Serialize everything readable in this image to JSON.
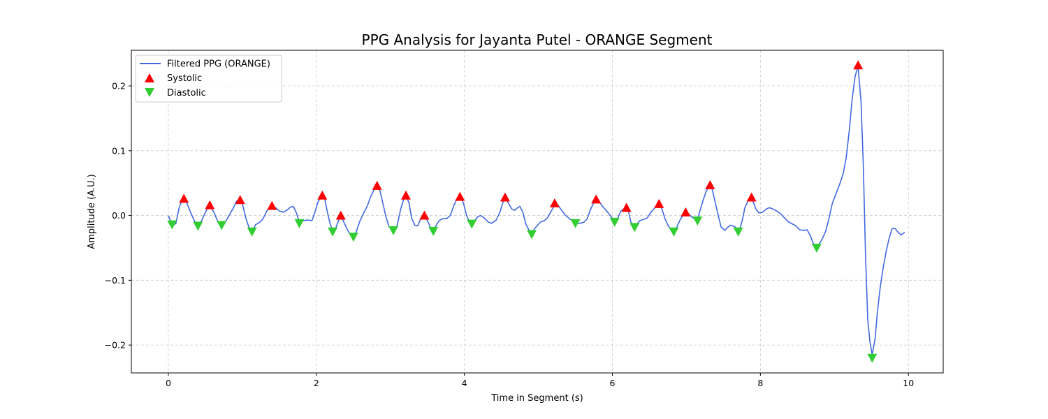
{
  "colors": {
    "signal": "#4169e1",
    "systolic": "#ff0000",
    "diastolic": "#32cd32",
    "grid": "#cccccc",
    "axes": "#000000"
  },
  "chart_data": {
    "type": "line",
    "title": "PPG Analysis for Jayanta Putel - ORANGE Segment",
    "xlabel": "Time in Segment (s)",
    "ylabel": "Amplitude (A.U.)",
    "xlim": [
      -0.5,
      10.47
    ],
    "ylim": [
      -0.243,
      0.255
    ],
    "x_ticks": [
      0,
      2,
      4,
      6,
      8,
      10
    ],
    "x_tick_labels": [
      "0",
      "2",
      "4",
      "6",
      "8",
      "10"
    ],
    "y_ticks": [
      -0.2,
      -0.1,
      0.0,
      0.1,
      0.2
    ],
    "y_tick_labels": [
      "−0.2",
      "−0.1",
      "0.0",
      "0.1",
      "0.2"
    ],
    "grid": true,
    "legend_position": "upper-left",
    "legend": [
      "Filtered PPG (ORANGE)",
      "Systolic",
      "Diastolic"
    ],
    "series": [
      {
        "name": "Filtered PPG (ORANGE)",
        "marker": "line",
        "points": [
          [
            0.0,
            0.0
          ],
          [
            0.05,
            -0.014
          ],
          [
            0.1,
            -0.013
          ],
          [
            0.15,
            0.014
          ],
          [
            0.2,
            0.026
          ],
          [
            0.24,
            0.022
          ],
          [
            0.3,
            0.005
          ],
          [
            0.35,
            -0.008
          ],
          [
            0.4,
            -0.016
          ],
          [
            0.45,
            -0.008
          ],
          [
            0.5,
            0.005
          ],
          [
            0.56,
            0.016
          ],
          [
            0.62,
            0.004
          ],
          [
            0.67,
            -0.01
          ],
          [
            0.72,
            -0.015
          ],
          [
            0.77,
            -0.01
          ],
          [
            0.82,
            0.0
          ],
          [
            0.88,
            0.012
          ],
          [
            0.92,
            0.022
          ],
          [
            0.96,
            0.024
          ],
          [
            1.0,
            0.018
          ],
          [
            1.05,
            -0.005
          ],
          [
            1.1,
            -0.022
          ],
          [
            1.13,
            -0.025
          ],
          [
            1.18,
            -0.014
          ],
          [
            1.23,
            -0.011
          ],
          [
            1.28,
            -0.005
          ],
          [
            1.33,
            0.007
          ],
          [
            1.4,
            0.015
          ],
          [
            1.45,
            0.012
          ],
          [
            1.5,
            0.007
          ],
          [
            1.55,
            0.005
          ],
          [
            1.6,
            0.008
          ],
          [
            1.65,
            0.013
          ],
          [
            1.69,
            0.014
          ],
          [
            1.73,
            0.004
          ],
          [
            1.77,
            -0.01
          ],
          [
            1.83,
            -0.008
          ],
          [
            1.88,
            -0.007
          ],
          [
            1.94,
            -0.008
          ],
          [
            1.98,
            0.005
          ],
          [
            2.02,
            0.02
          ],
          [
            2.07,
            0.031
          ],
          [
            2.11,
            0.028
          ],
          [
            2.14,
            0.01
          ],
          [
            2.18,
            -0.01
          ],
          [
            2.22,
            -0.025
          ],
          [
            2.26,
            -0.02
          ],
          [
            2.3,
            -0.008
          ],
          [
            2.33,
            0.0
          ],
          [
            2.37,
            -0.01
          ],
          [
            2.42,
            -0.022
          ],
          [
            2.46,
            -0.03
          ],
          [
            2.5,
            -0.033
          ],
          [
            2.54,
            -0.025
          ],
          [
            2.59,
            -0.008
          ],
          [
            2.64,
            0.004
          ],
          [
            2.69,
            0.015
          ],
          [
            2.73,
            0.028
          ],
          [
            2.78,
            0.04
          ],
          [
            2.82,
            0.045
          ],
          [
            2.86,
            0.038
          ],
          [
            2.9,
            0.018
          ],
          [
            2.94,
            -0.002
          ],
          [
            2.98,
            -0.017
          ],
          [
            3.04,
            -0.023
          ],
          [
            3.09,
            -0.016
          ],
          [
            3.14,
            0.01
          ],
          [
            3.18,
            0.025
          ],
          [
            3.21,
            0.03
          ],
          [
            3.25,
            0.02
          ],
          [
            3.29,
            -0.005
          ],
          [
            3.33,
            -0.015
          ],
          [
            3.37,
            -0.016
          ],
          [
            3.41,
            -0.005
          ],
          [
            3.46,
            0.0
          ],
          [
            3.5,
            -0.008
          ],
          [
            3.55,
            -0.02
          ],
          [
            3.58,
            -0.025
          ],
          [
            3.62,
            -0.015
          ],
          [
            3.66,
            -0.008
          ],
          [
            3.7,
            -0.005
          ],
          [
            3.76,
            -0.005
          ],
          [
            3.81,
            0.0
          ],
          [
            3.86,
            0.016
          ],
          [
            3.91,
            0.028
          ],
          [
            3.95,
            0.029
          ],
          [
            3.99,
            0.018
          ],
          [
            4.03,
            0.0
          ],
          [
            4.07,
            -0.01
          ],
          [
            4.1,
            -0.013
          ],
          [
            4.14,
            -0.008
          ],
          [
            4.18,
            -0.002
          ],
          [
            4.22,
            0.0
          ],
          [
            4.27,
            -0.004
          ],
          [
            4.32,
            -0.01
          ],
          [
            4.37,
            -0.012
          ],
          [
            4.43,
            -0.007
          ],
          [
            4.48,
            0.005
          ],
          [
            4.52,
            0.02
          ],
          [
            4.55,
            0.028
          ],
          [
            4.6,
            0.018
          ],
          [
            4.64,
            0.01
          ],
          [
            4.68,
            0.008
          ],
          [
            4.72,
            0.012
          ],
          [
            4.75,
            0.014
          ],
          [
            4.79,
            0.005
          ],
          [
            4.83,
            -0.013
          ],
          [
            4.87,
            -0.022
          ],
          [
            4.91,
            -0.029
          ],
          [
            4.95,
            -0.02
          ],
          [
            4.99,
            -0.015
          ],
          [
            5.03,
            -0.01
          ],
          [
            5.08,
            -0.008
          ],
          [
            5.12,
            -0.004
          ],
          [
            5.17,
            0.006
          ],
          [
            5.23,
            0.018
          ],
          [
            5.27,
            0.015
          ],
          [
            5.32,
            0.007
          ],
          [
            5.37,
            0.0
          ],
          [
            5.42,
            -0.005
          ],
          [
            5.47,
            -0.009
          ],
          [
            5.52,
            -0.012
          ],
          [
            5.57,
            -0.012
          ],
          [
            5.62,
            -0.01
          ],
          [
            5.66,
            -0.005
          ],
          [
            5.7,
            0.008
          ],
          [
            5.74,
            0.018
          ],
          [
            5.78,
            0.024
          ],
          [
            5.82,
            0.022
          ],
          [
            5.86,
            0.015
          ],
          [
            5.9,
            0.01
          ],
          [
            5.95,
            0.003
          ],
          [
            5.99,
            -0.003
          ],
          [
            6.03,
            -0.01
          ],
          [
            6.07,
            -0.005
          ],
          [
            6.11,
            0.006
          ],
          [
            6.15,
            0.01
          ],
          [
            6.19,
            0.012
          ],
          [
            6.22,
            0.005
          ],
          [
            6.25,
            -0.01
          ],
          [
            6.29,
            -0.018
          ],
          [
            6.32,
            -0.015
          ],
          [
            6.37,
            -0.008
          ],
          [
            6.42,
            -0.006
          ],
          [
            6.47,
            -0.004
          ],
          [
            6.52,
            0.005
          ],
          [
            6.56,
            0.01
          ],
          [
            6.6,
            0.015
          ],
          [
            6.63,
            0.017
          ],
          [
            6.67,
            0.01
          ],
          [
            6.71,
            -0.005
          ],
          [
            6.75,
            -0.015
          ],
          [
            6.79,
            -0.022
          ],
          [
            6.83,
            -0.025
          ],
          [
            6.87,
            -0.018
          ],
          [
            6.91,
            -0.008
          ],
          [
            6.95,
            0.0
          ],
          [
            6.99,
            0.005
          ],
          [
            7.03,
            0.002
          ],
          [
            7.07,
            -0.002
          ],
          [
            7.11,
            -0.005
          ],
          [
            7.15,
            -0.006
          ],
          [
            7.19,
            0.01
          ],
          [
            7.23,
            0.025
          ],
          [
            7.27,
            0.038
          ],
          [
            7.31,
            0.045
          ],
          [
            7.35,
            0.04
          ],
          [
            7.39,
            0.02
          ],
          [
            7.43,
            0.0
          ],
          [
            7.47,
            -0.018
          ],
          [
            7.52,
            -0.023
          ],
          [
            7.56,
            -0.018
          ],
          [
            7.6,
            -0.015
          ],
          [
            7.65,
            -0.017
          ],
          [
            7.7,
            -0.022
          ],
          [
            7.73,
            -0.018
          ],
          [
            7.76,
            -0.005
          ],
          [
            7.79,
            0.012
          ],
          [
            7.83,
            0.022
          ],
          [
            7.87,
            0.027
          ],
          [
            7.9,
            0.022
          ],
          [
            7.94,
            0.01
          ],
          [
            7.98,
            0.004
          ],
          [
            8.03,
            0.005
          ],
          [
            8.08,
            0.01
          ],
          [
            8.12,
            0.012
          ],
          [
            8.17,
            0.01
          ],
          [
            8.22,
            0.007
          ],
          [
            8.27,
            0.003
          ],
          [
            8.32,
            -0.003
          ],
          [
            8.38,
            -0.01
          ],
          [
            8.43,
            -0.013
          ],
          [
            8.48,
            -0.016
          ],
          [
            8.53,
            -0.022
          ],
          [
            8.58,
            -0.023
          ],
          [
            8.63,
            -0.022
          ],
          [
            8.67,
            -0.03
          ],
          [
            8.71,
            -0.042
          ],
          [
            8.76,
            -0.05
          ],
          [
            8.8,
            -0.043
          ],
          [
            8.84,
            -0.035
          ],
          [
            8.88,
            -0.025
          ],
          [
            8.92,
            -0.008
          ],
          [
            8.97,
            0.018
          ],
          [
            9.02,
            0.033
          ],
          [
            9.07,
            0.048
          ],
          [
            9.12,
            0.065
          ],
          [
            9.16,
            0.09
          ],
          [
            9.2,
            0.13
          ],
          [
            9.24,
            0.18
          ],
          [
            9.28,
            0.215
          ],
          [
            9.32,
            0.23
          ],
          [
            9.36,
            0.175
          ],
          [
            9.39,
            0.08
          ],
          [
            9.42,
            -0.06
          ],
          [
            9.45,
            -0.16
          ],
          [
            9.48,
            -0.195
          ],
          [
            9.51,
            -0.215
          ],
          [
            9.55,
            -0.19
          ],
          [
            9.58,
            -0.15
          ],
          [
            9.62,
            -0.11
          ],
          [
            9.66,
            -0.08
          ],
          [
            9.7,
            -0.055
          ],
          [
            9.74,
            -0.035
          ],
          [
            9.78,
            -0.02
          ],
          [
            9.82,
            -0.02
          ],
          [
            9.86,
            -0.026
          ],
          [
            9.9,
            -0.03
          ],
          [
            9.95,
            -0.026
          ]
        ]
      },
      {
        "name": "Systolic",
        "marker": "triangle-up",
        "points": [
          [
            0.21,
            0.026
          ],
          [
            0.56,
            0.016
          ],
          [
            0.97,
            0.024
          ],
          [
            1.4,
            0.015
          ],
          [
            2.08,
            0.031
          ],
          [
            2.33,
            0.0
          ],
          [
            2.82,
            0.046
          ],
          [
            3.21,
            0.031
          ],
          [
            3.46,
            0.0
          ],
          [
            3.94,
            0.029
          ],
          [
            4.55,
            0.028
          ],
          [
            5.22,
            0.019
          ],
          [
            5.78,
            0.025
          ],
          [
            6.19,
            0.012
          ],
          [
            6.63,
            0.018
          ],
          [
            6.99,
            0.005
          ],
          [
            7.32,
            0.047
          ],
          [
            7.88,
            0.028
          ],
          [
            9.32,
            0.232
          ]
        ]
      },
      {
        "name": "Diastolic",
        "marker": "triangle-down",
        "points": [
          [
            0.05,
            -0.014
          ],
          [
            0.4,
            -0.016
          ],
          [
            0.72,
            -0.015
          ],
          [
            1.13,
            -0.025
          ],
          [
            1.77,
            -0.012
          ],
          [
            2.22,
            -0.025
          ],
          [
            2.5,
            -0.033
          ],
          [
            3.04,
            -0.023
          ],
          [
            3.58,
            -0.024
          ],
          [
            4.1,
            -0.013
          ],
          [
            4.91,
            -0.029
          ],
          [
            5.5,
            -0.012
          ],
          [
            6.03,
            -0.01
          ],
          [
            6.3,
            -0.018
          ],
          [
            6.83,
            -0.025
          ],
          [
            7.15,
            -0.008
          ],
          [
            7.7,
            -0.025
          ],
          [
            8.76,
            -0.05
          ],
          [
            9.51,
            -0.22
          ]
        ]
      }
    ]
  }
}
